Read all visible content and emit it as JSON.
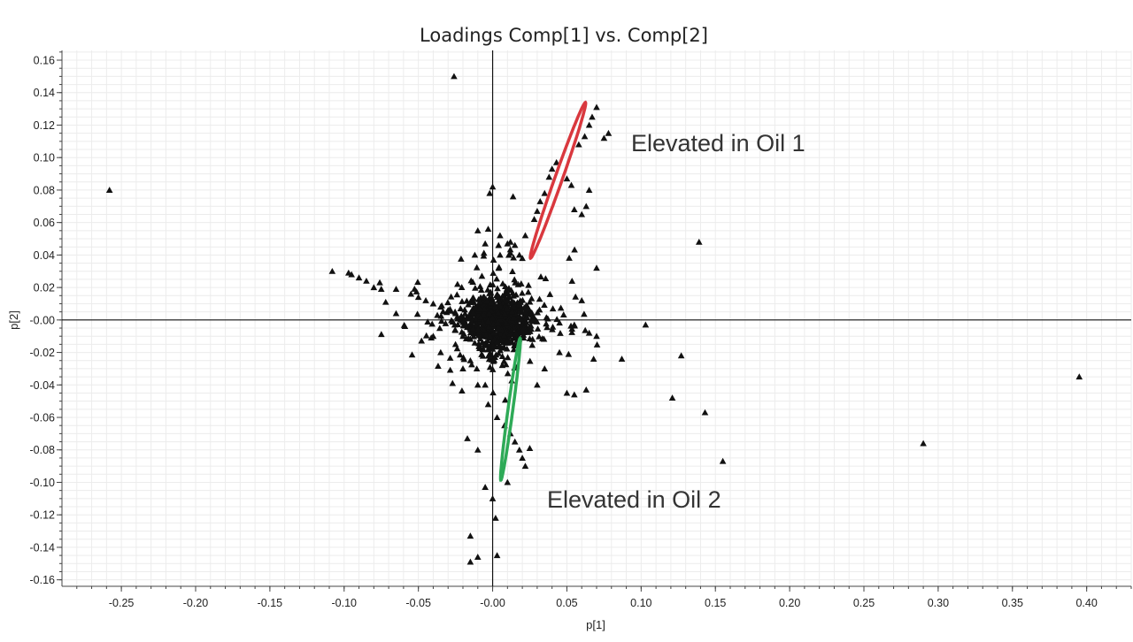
{
  "chart_data": {
    "type": "scatter",
    "title": "Loadings Comp[1] vs. Comp[2]",
    "xlabel": "p[1]",
    "ylabel": "p[2]",
    "xlim": [
      -0.29,
      0.43
    ],
    "ylim": [
      -0.164,
      0.166
    ],
    "grid": true,
    "x_ticks": [
      -0.25,
      -0.2,
      -0.15,
      -0.1,
      -0.05,
      0.0,
      0.05,
      0.1,
      0.15,
      0.2,
      0.25,
      0.3,
      0.35,
      0.4
    ],
    "x_tick_labels": [
      "-0.25",
      "-0.20",
      "-0.15",
      "-0.10",
      "-0.05",
      "-0.00",
      "0.05",
      "0.10",
      "0.15",
      "0.20",
      "0.25",
      "0.30",
      "0.35",
      "0.40"
    ],
    "y_ticks": [
      0.16,
      0.14,
      0.12,
      0.1,
      0.08,
      0.06,
      0.04,
      0.02,
      0.0,
      -0.02,
      -0.04,
      -0.06,
      -0.08,
      -0.1,
      -0.12,
      -0.14,
      -0.16
    ],
    "y_tick_labels": [
      "0.16",
      "0.14",
      "0.12",
      "0.10",
      "0.08",
      "0.06",
      "0.04",
      "0.02",
      "-0.00",
      "-0.02",
      "-0.04",
      "-0.06",
      "-0.08",
      "-0.10",
      "-0.12",
      "-0.14",
      "-0.16"
    ],
    "marker": "triangle",
    "marker_color": "#111111",
    "points": [
      [
        -0.258,
        0.08
      ],
      [
        -0.026,
        0.15
      ],
      [
        -0.108,
        0.03
      ],
      [
        -0.097,
        0.029
      ],
      [
        -0.095,
        0.028
      ],
      [
        -0.09,
        0.026
      ],
      [
        -0.085,
        0.024
      ],
      [
        -0.08,
        0.02
      ],
      [
        -0.076,
        0.023
      ],
      [
        -0.075,
        0.019
      ],
      [
        -0.072,
        0.011
      ],
      [
        -0.065,
        0.019
      ],
      [
        -0.065,
        0.004
      ],
      [
        -0.055,
        0.016
      ],
      [
        -0.05,
        0.014
      ],
      [
        -0.045,
        0.012
      ],
      [
        -0.04,
        0.01
      ],
      [
        -0.035,
        0.008
      ],
      [
        -0.03,
        0.006
      ],
      [
        -0.025,
        0.004
      ],
      [
        -0.035,
        -0.02
      ],
      [
        -0.04,
        -0.01
      ],
      [
        -0.025,
        -0.015
      ],
      [
        -0.02,
        -0.01
      ],
      [
        -0.027,
        -0.039
      ],
      [
        -0.02,
        -0.03
      ],
      [
        -0.015,
        -0.025
      ],
      [
        -0.01,
        -0.04
      ],
      [
        -0.005,
        -0.04
      ],
      [
        -0.003,
        -0.052
      ],
      [
        -0.012,
        0.04
      ],
      [
        -0.01,
        0.055
      ],
      [
        -0.005,
        0.047
      ],
      [
        -0.003,
        0.056
      ],
      [
        -0.002,
        0.078
      ],
      [
        0.0,
        0.082
      ],
      [
        0.005,
        0.04
      ],
      [
        0.01,
        0.047
      ],
      [
        0.012,
        0.048
      ],
      [
        0.015,
        0.046
      ],
      [
        0.018,
        0.04
      ],
      [
        0.02,
        0.038
      ],
      [
        0.022,
        0.052
      ],
      [
        0.028,
        0.062
      ],
      [
        0.03,
        0.067
      ],
      [
        0.032,
        0.073
      ],
      [
        0.035,
        0.078
      ],
      [
        0.038,
        0.088
      ],
      [
        0.04,
        0.093
      ],
      [
        0.043,
        0.097
      ],
      [
        0.05,
        0.087
      ],
      [
        0.053,
        0.083
      ],
      [
        0.055,
        0.068
      ],
      [
        0.06,
        0.065
      ],
      [
        0.063,
        0.07
      ],
      [
        0.065,
        0.08
      ],
      [
        0.058,
        0.108
      ],
      [
        0.062,
        0.113
      ],
      [
        0.065,
        0.12
      ],
      [
        0.067,
        0.125
      ],
      [
        0.07,
        0.131
      ],
      [
        0.075,
        0.112
      ],
      [
        0.078,
        0.115
      ],
      [
        0.07,
        0.032
      ],
      [
        0.06,
        0.012
      ],
      [
        0.055,
        -0.003
      ],
      [
        0.065,
        -0.008
      ],
      [
        0.07,
        -0.01
      ],
      [
        0.068,
        -0.024
      ],
      [
        0.045,
        -0.02
      ],
      [
        0.035,
        -0.03
      ],
      [
        0.03,
        -0.04
      ],
      [
        0.05,
        -0.045
      ],
      [
        0.055,
        -0.046
      ],
      [
        0.063,
        -0.043
      ],
      [
        0.087,
        -0.024
      ],
      [
        0.103,
        -0.003
      ],
      [
        0.127,
        -0.022
      ],
      [
        0.121,
        -0.048
      ],
      [
        0.143,
        -0.057
      ],
      [
        0.139,
        0.048
      ],
      [
        0.155,
        -0.087
      ],
      [
        0.29,
        -0.076
      ],
      [
        0.395,
        -0.035
      ],
      [
        0.003,
        -0.06
      ],
      [
        0.008,
        -0.065
      ],
      [
        0.012,
        -0.07
      ],
      [
        0.015,
        -0.075
      ],
      [
        0.018,
        -0.08
      ],
      [
        0.02,
        -0.085
      ],
      [
        0.022,
        -0.09
      ],
      [
        0.025,
        -0.079
      ],
      [
        -0.017,
        -0.073
      ],
      [
        -0.01,
        -0.08
      ],
      [
        -0.005,
        -0.103
      ],
      [
        0.002,
        -0.122
      ],
      [
        -0.015,
        -0.133
      ],
      [
        -0.01,
        -0.146
      ],
      [
        -0.015,
        -0.149
      ],
      [
        0.0,
        -0.11
      ],
      [
        0.003,
        -0.145
      ],
      [
        0.01,
        -0.1
      ]
    ],
    "dense_cluster": {
      "center": [
        0.003,
        0.0
      ],
      "spread_x": 0.018,
      "spread_y": 0.014
    },
    "ellipses": [
      {
        "label": "Elevated in Oil 1",
        "color": "#d9383e",
        "center": [
          0.044,
          0.086
        ],
        "semi_major": 0.057,
        "semi_minor": 0.007,
        "angle_deg": 57
      },
      {
        "label": "Elevated in Oil 2",
        "color": "#2eaa57",
        "center": [
          0.012,
          -0.055
        ],
        "semi_major": 0.045,
        "semi_minor": 0.007,
        "angle_deg": 76
      }
    ],
    "annotations": [
      "Elevated in Oil 1",
      "Elevated in Oil 2"
    ]
  }
}
